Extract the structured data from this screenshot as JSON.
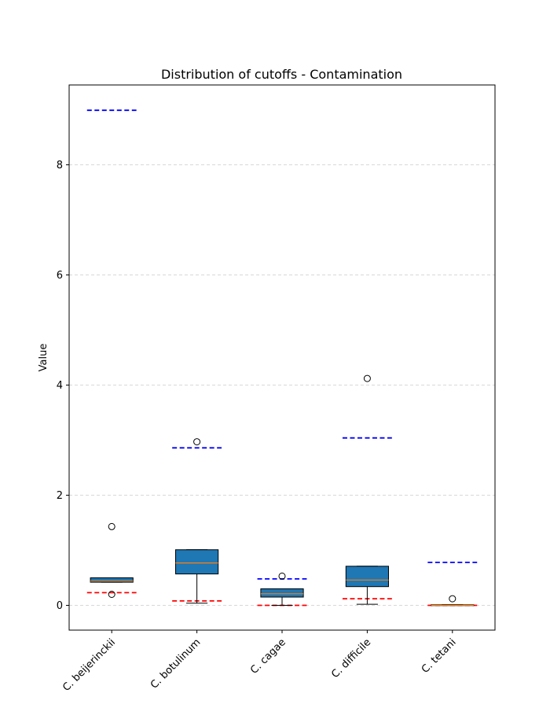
{
  "chart_data": {
    "type": "box",
    "title": "Distribution of cutoffs - Contamination",
    "xlabel": "",
    "ylabel": "Value",
    "ylim": [
      -0.45,
      9.45
    ],
    "yticks": [
      0,
      2,
      4,
      6,
      8
    ],
    "grid": "horizontal dashed",
    "categories": [
      "C. beijerinckii",
      "C. botulinum",
      "C. cagae",
      "C. difficile",
      "C. tetani"
    ],
    "boxes": [
      {
        "whislo": 0.42,
        "q1": 0.42,
        "med": 0.44,
        "q3": 0.5,
        "whishi": 0.5,
        "fliers": [
          1.43,
          0.2
        ]
      },
      {
        "whislo": 0.04,
        "q1": 0.57,
        "med": 0.77,
        "q3": 1.01,
        "whishi": 1.01,
        "fliers": [
          2.97
        ]
      },
      {
        "whislo": 0.0,
        "q1": 0.15,
        "med": 0.21,
        "q3": 0.3,
        "whishi": 0.3,
        "fliers": [
          0.53
        ]
      },
      {
        "whislo": 0.02,
        "q1": 0.34,
        "med": 0.46,
        "q3": 0.71,
        "whishi": 0.71,
        "fliers": [
          4.12
        ]
      },
      {
        "whislo": 0.0,
        "q1": 0.0,
        "med": 0.0,
        "q3": 0.01,
        "whishi": 0.01,
        "fliers": [
          0.12
        ]
      }
    ],
    "upper_cutoffs": [
      8.99,
      2.86,
      0.48,
      3.04,
      0.78
    ],
    "lower_cutoffs": [
      0.23,
      0.08,
      0.0,
      0.12,
      0.0
    ],
    "colors": {
      "box_fill": "#1f77b4",
      "median": "#ff7f0e",
      "upper_cutoff": "#0000ff",
      "lower_cutoff": "#ff0000",
      "grid": "#cccccc",
      "axis": "#000000"
    }
  }
}
